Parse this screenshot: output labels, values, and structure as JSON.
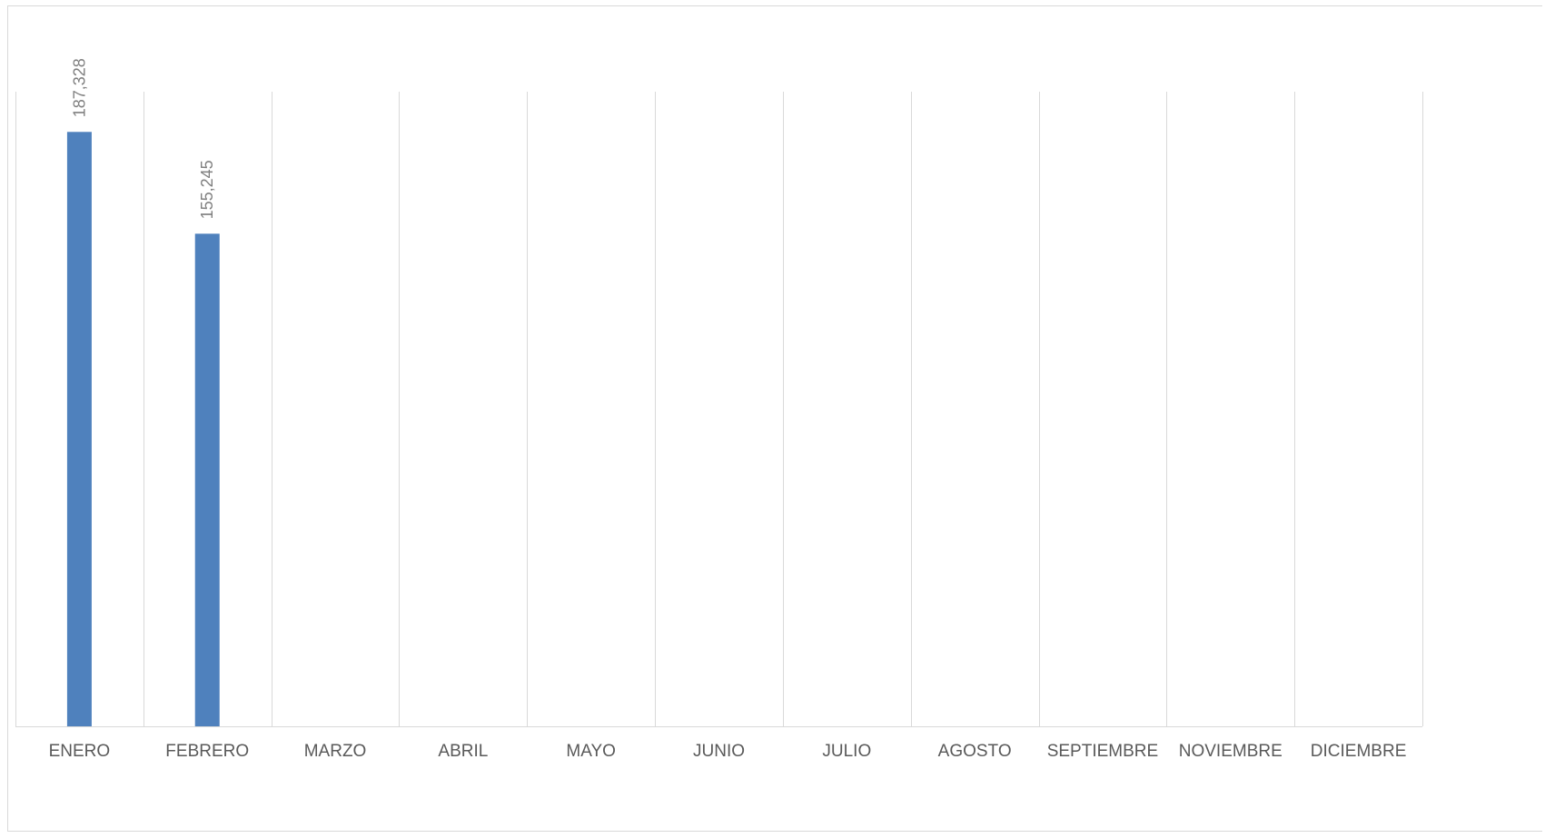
{
  "chart_data": {
    "type": "bar",
    "title": "",
    "xlabel": "",
    "ylabel": "",
    "categories": [
      "ENERO",
      "FEBRERO",
      "MARZO",
      "ABRIL",
      "MAYO",
      "JUNIO",
      "JULIO",
      "AGOSTO",
      "SEPTIEMBRE",
      "NOVIEMBRE",
      "DICIEMBRE"
    ],
    "values": [
      187328,
      155245,
      null,
      null,
      null,
      null,
      null,
      null,
      null,
      null,
      null
    ],
    "data_labels": [
      "187,328",
      "155,245",
      "",
      "",
      "",
      "",
      "",
      "",
      "",
      "",
      ""
    ],
    "ylim": [
      0,
      200000
    ],
    "grid": "vertical",
    "legend": "none",
    "colors": {
      "bar": "#4f81bd",
      "gridline": "#d9d9d9",
      "axis": "#d9d9d9",
      "category_text": "#595959",
      "data_label_text": "#7f7f7f"
    }
  }
}
